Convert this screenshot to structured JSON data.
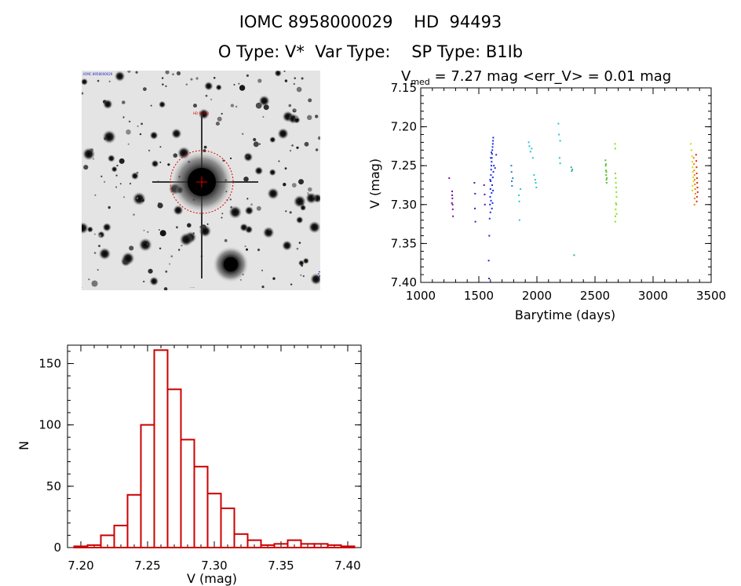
{
  "header": {
    "line1": "IOMC 8958000029    HD  94493",
    "line2": "O Type: V*  Var Type:    SP Type: B1Ib"
  },
  "stamp": {
    "label_top_left": "IOMC 8958000029",
    "label_center": "HD 94493",
    "circle_color": "#dd0000"
  },
  "chart_data": [
    {
      "type": "scatter",
      "title_prefix": "V",
      "title_sub": "med",
      "title_rest": " = 7.27 mag <err_V> = 0.01 mag",
      "xlabel": "Barytime (days)",
      "ylabel": "V (mag)",
      "xlim": [
        1000,
        3500
      ],
      "ylim": [
        7.15,
        7.4
      ],
      "y_inverted": true,
      "xticks": [
        1000,
        1500,
        2000,
        2500,
        3000,
        3500
      ],
      "yticks": [
        7.15,
        7.2,
        7.25,
        7.3,
        7.35,
        7.4
      ],
      "ytick_labels": [
        "7.15",
        "7.20",
        "7.25",
        "7.30",
        "7.35",
        "7.40"
      ],
      "grid": false,
      "series": [
        {
          "name": "purple",
          "color": "#7a0a9a",
          "points": [
            [
              1245,
              7.266
            ],
            [
              1270,
              7.283
            ],
            [
              1272,
              7.292
            ],
            [
              1274,
              7.3
            ],
            [
              1276,
              7.306
            ],
            [
              1278,
              7.315
            ],
            [
              1268,
              7.298
            ],
            [
              1271,
              7.288
            ]
          ]
        },
        {
          "name": "indigo",
          "color": "#4a16b0",
          "points": [
            [
              1462,
              7.272
            ],
            [
              1466,
              7.305
            ],
            [
              1470,
              7.322
            ],
            [
              1468,
              7.286
            ],
            [
              1545,
              7.275
            ],
            [
              1550,
              7.287
            ],
            [
              1552,
              7.3
            ]
          ]
        },
        {
          "name": "blue",
          "color": "#1a2ae0",
          "points": [
            [
              1585,
              7.372
            ],
            [
              1588,
              7.395
            ],
            [
              1590,
              7.34
            ],
            [
              1593,
              7.318
            ],
            [
              1596,
              7.3
            ],
            [
              1598,
              7.29
            ],
            [
              1600,
              7.28
            ],
            [
              1602,
              7.27
            ],
            [
              1604,
              7.262
            ],
            [
              1606,
              7.255
            ],
            [
              1608,
              7.25
            ],
            [
              1610,
              7.245
            ],
            [
              1612,
              7.24
            ],
            [
              1614,
              7.235
            ],
            [
              1616,
              7.23
            ],
            [
              1618,
              7.226
            ],
            [
              1620,
              7.222
            ],
            [
              1622,
              7.218
            ],
            [
              1624,
              7.214
            ],
            [
              1600,
              7.31
            ],
            [
              1605,
              7.295
            ],
            [
              1610,
              7.285
            ],
            [
              1615,
              7.275
            ],
            [
              1620,
              7.265
            ],
            [
              1625,
              7.258
            ],
            [
              1630,
              7.25
            ],
            [
              1640,
              7.253
            ],
            [
              1650,
              7.236
            ],
            [
              1612,
              7.305
            ],
            [
              1618,
              7.298
            ],
            [
              1622,
              7.282
            ],
            [
              1598,
              7.268
            ],
            [
              1603,
              7.24
            ],
            [
              1608,
              7.233
            ]
          ]
        },
        {
          "name": "skyblue",
          "color": "#1e82d8",
          "points": [
            [
              1780,
              7.25
            ],
            [
              1782,
              7.258
            ],
            [
              1784,
              7.27
            ],
            [
              1786,
              7.276
            ],
            [
              1792,
              7.266
            ]
          ]
        },
        {
          "name": "cyan",
          "color": "#21c8d8",
          "points": [
            [
              1845,
              7.288
            ],
            [
              1848,
              7.296
            ],
            [
              1850,
              7.32
            ],
            [
              1858,
              7.28
            ],
            [
              1930,
              7.22
            ],
            [
              1935,
              7.225
            ],
            [
              1945,
              7.232
            ],
            [
              1955,
              7.228
            ],
            [
              1965,
              7.24
            ],
            [
              1975,
              7.262
            ],
            [
              1985,
              7.268
            ],
            [
              1990,
              7.272
            ],
            [
              1995,
              7.278
            ],
            [
              2185,
              7.196
            ],
            [
              2190,
              7.21
            ],
            [
              2200,
              7.218
            ],
            [
              2195,
              7.24
            ],
            [
              2200,
              7.247
            ]
          ]
        },
        {
          "name": "teal",
          "color": "#2ab090",
          "points": [
            [
              2295,
              7.252
            ],
            [
              2300,
              7.257
            ],
            [
              2305,
              7.255
            ],
            [
              2320,
              7.365
            ]
          ]
        },
        {
          "name": "green",
          "color": "#55c22a",
          "points": [
            [
              2590,
              7.243
            ],
            [
              2592,
              7.25
            ],
            [
              2594,
              7.256
            ],
            [
              2596,
              7.262
            ],
            [
              2598,
              7.268
            ],
            [
              2600,
              7.272
            ],
            [
              2602,
              7.266
            ],
            [
              2598,
              7.258
            ],
            [
              2594,
              7.248
            ]
          ]
        },
        {
          "name": "lime",
          "color": "#88e018",
          "points": [
            [
              2672,
              7.222
            ],
            [
              2674,
              7.228
            ],
            [
              2676,
              7.26
            ],
            [
              2678,
              7.266
            ],
            [
              2680,
              7.272
            ],
            [
              2682,
              7.278
            ],
            [
              2684,
              7.284
            ],
            [
              2686,
              7.29
            ],
            [
              2680,
              7.298
            ],
            [
              2678,
              7.306
            ],
            [
              2676,
              7.315
            ],
            [
              2674,
              7.322
            ],
            [
              2684,
              7.3
            ],
            [
              2686,
              7.312
            ]
          ]
        },
        {
          "name": "yellow",
          "color": "#d8d800",
          "points": [
            [
              3325,
              7.222
            ],
            [
              3330,
              7.23
            ],
            [
              3335,
              7.238
            ],
            [
              3338,
              7.245
            ],
            [
              3340,
              7.252
            ],
            [
              3342,
              7.258
            ],
            [
              3345,
              7.265
            ],
            [
              3348,
              7.27
            ],
            [
              3340,
              7.276
            ],
            [
              3338,
              7.282
            ]
          ]
        },
        {
          "name": "orange",
          "color": "#f08010",
          "points": [
            [
              3350,
              7.24
            ],
            [
              3352,
              7.248
            ],
            [
              3354,
              7.256
            ],
            [
              3356,
              7.262
            ],
            [
              3358,
              7.268
            ],
            [
              3360,
              7.274
            ],
            [
              3362,
              7.28
            ],
            [
              3364,
              7.286
            ],
            [
              3358,
              7.292
            ],
            [
              3356,
              7.3
            ]
          ]
        },
        {
          "name": "red",
          "color": "#d82a10",
          "points": [
            [
              3370,
              7.236
            ],
            [
              3372,
              7.244
            ],
            [
              3374,
              7.252
            ],
            [
              3376,
              7.26
            ],
            [
              3378,
              7.266
            ],
            [
              3380,
              7.272
            ],
            [
              3382,
              7.278
            ],
            [
              3384,
              7.284
            ],
            [
              3378,
              7.29
            ],
            [
              3376,
              7.296
            ]
          ]
        }
      ]
    },
    {
      "type": "bar",
      "subtype": "histogram",
      "xlabel": "V (mag)",
      "ylabel": "N",
      "xlim": [
        7.19,
        7.41
      ],
      "ylim": [
        0,
        165
      ],
      "xticks": [
        7.2,
        7.25,
        7.3,
        7.35,
        7.4
      ],
      "xtick_labels": [
        "7.20",
        "7.25",
        "7.30",
        "7.35",
        "7.40"
      ],
      "yticks": [
        0,
        50,
        100,
        150
      ],
      "bin_width": 0.01,
      "bin_starts": [
        7.195,
        7.205,
        7.215,
        7.225,
        7.235,
        7.245,
        7.255,
        7.265,
        7.275,
        7.285,
        7.295,
        7.305,
        7.315,
        7.325,
        7.335,
        7.345,
        7.355,
        7.365,
        7.375,
        7.385,
        7.395
      ],
      "values": [
        1,
        2,
        10,
        18,
        43,
        100,
        161,
        129,
        88,
        66,
        44,
        32,
        11,
        6,
        2,
        3,
        6,
        3,
        3,
        2,
        1
      ],
      "color": "#cc0000"
    }
  ]
}
